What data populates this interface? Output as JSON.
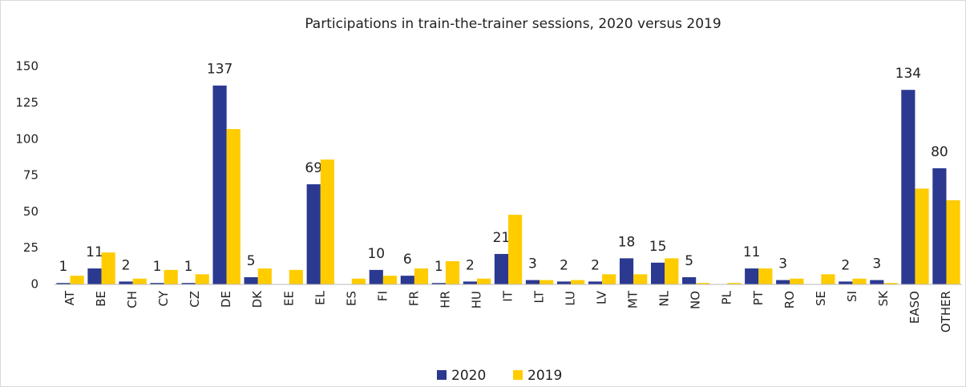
{
  "chart_data": {
    "type": "bar",
    "title": "Participations in train-the-trainer sessions, 2020 versus 2019",
    "categories": [
      "AT",
      "BE",
      "CH",
      "CY",
      "CZ",
      "DE",
      "DK",
      "EE",
      "EL",
      "ES",
      "FI",
      "FR",
      "HR",
      "HU",
      "IT",
      "LT",
      "LU",
      "LV",
      "MT",
      "NL",
      "NO",
      "PL",
      "PT",
      "RO",
      "SE",
      "SI",
      "SK",
      "EASO",
      "OTHER"
    ],
    "series": [
      {
        "name": "2020",
        "color": "#2b3990",
        "values": [
          1,
          11,
          2,
          1,
          1,
          137,
          5,
          null,
          69,
          null,
          10,
          6,
          1,
          2,
          21,
          3,
          2,
          2,
          18,
          15,
          5,
          null,
          11,
          3,
          null,
          2,
          3,
          134,
          80
        ]
      },
      {
        "name": "2019",
        "color": "#ffcc00",
        "values": [
          6,
          22,
          4,
          10,
          7,
          107,
          11,
          10,
          86,
          4,
          6,
          11,
          16,
          4,
          48,
          3,
          3,
          7,
          7,
          18,
          1,
          1,
          11,
          4,
          7,
          4,
          1,
          66,
          58
        ]
      }
    ],
    "labeled_series": 0,
    "ylim": [
      0,
      165
    ],
    "yticks": [
      0,
      25,
      50,
      75,
      100,
      125,
      150
    ],
    "grid": false,
    "legend": "bottom"
  }
}
